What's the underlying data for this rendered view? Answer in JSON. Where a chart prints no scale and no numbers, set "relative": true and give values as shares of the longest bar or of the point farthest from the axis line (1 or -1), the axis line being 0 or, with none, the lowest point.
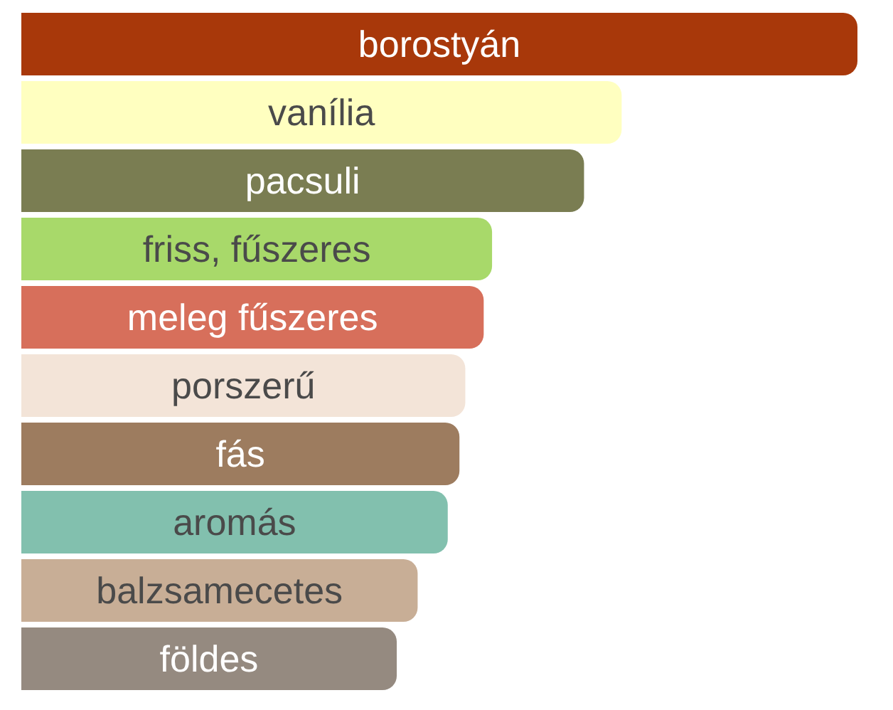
{
  "chart_data": {
    "type": "bar",
    "orientation": "horizontal",
    "relative": true,
    "categories": [
      "borostyán",
      "vanília",
      "pacsuli",
      "friss, fűszeres",
      "meleg fűszeres",
      "porszerű",
      "fás",
      "aromás",
      "balzsamecetes",
      "földes"
    ],
    "values": [
      1,
      0.718,
      0.673,
      0.563,
      0.553,
      0.531,
      0.524,
      0.51,
      0.474,
      0.449
    ],
    "colors": [
      "#a8380a",
      "#ffffc0",
      "#7a7d52",
      "#a8d96a",
      "#d76f5b",
      "#f3e4d8",
      "#9d7c5f",
      "#82c0ae",
      "#c8ae96",
      "#958a80"
    ],
    "grid": false,
    "legend": false
  }
}
